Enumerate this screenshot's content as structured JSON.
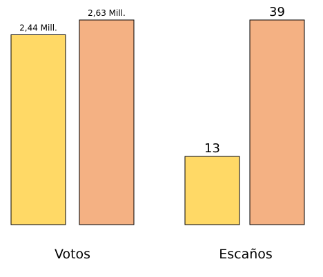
{
  "chart_data": [
    {
      "type": "bar",
      "xlabel": "Votos",
      "values": [
        2.44,
        2.63
      ],
      "value_labels": [
        "2,44 Mill.",
        "2,63 Mill."
      ],
      "colors": [
        "#FFD966",
        "#F4B183"
      ]
    },
    {
      "type": "bar",
      "xlabel": "Escaños",
      "values": [
        13,
        39
      ],
      "colors": [
        "#FFD966",
        "#F4B183"
      ]
    }
  ]
}
